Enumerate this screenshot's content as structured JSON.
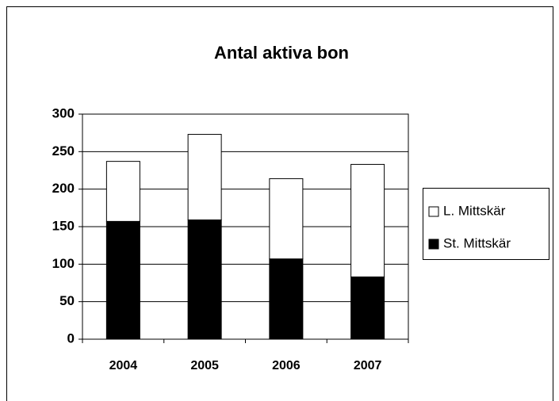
{
  "chart_data": {
    "type": "stacked_bar",
    "title": "Antal aktiva bon",
    "categories": [
      "2004",
      "2005",
      "2006",
      "2007"
    ],
    "series": [
      {
        "name": "St. Mittskär",
        "color": "#000000",
        "values": [
          157,
          159,
          107,
          83
        ]
      },
      {
        "name": "L. Mittskär",
        "color": "#ffffff",
        "values": [
          80,
          114,
          107,
          150
        ]
      }
    ],
    "ylim": [
      0,
      300
    ],
    "yticks": [
      0,
      50,
      100,
      150,
      200,
      250,
      300
    ],
    "grid": true,
    "legend": "right"
  }
}
